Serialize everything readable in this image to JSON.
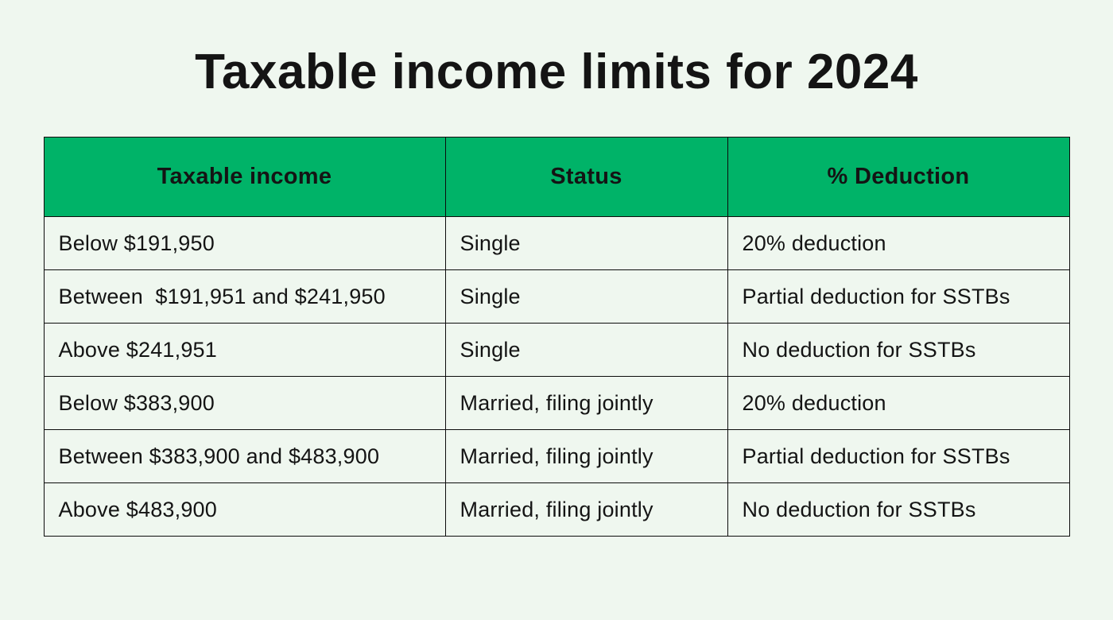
{
  "page": {
    "title": "Taxable income limits for 2024"
  },
  "colors": {
    "background": "#eff7ef",
    "header_green": "#00b368",
    "border": "#0c0c0c",
    "text": "#141414"
  },
  "table": {
    "headers": [
      "Taxable income",
      "Status",
      "% Deduction"
    ],
    "rows": [
      [
        "Below $191,950",
        "Single",
        "20% deduction"
      ],
      [
        "Between  $191,951 and $241,950",
        "Single",
        "Partial deduction for SSTBs"
      ],
      [
        "Above $241,951",
        "Single",
        "No deduction for SSTBs"
      ],
      [
        "Below $383,900",
        "Married, filing jointly",
        "20% deduction"
      ],
      [
        "Between $383,900 and $483,900",
        "Married, filing jointly",
        "Partial deduction for SSTBs"
      ],
      [
        "Above $483,900",
        "Married, filing jointly",
        "No deduction for SSTBs"
      ]
    ]
  },
  "chart_data": {
    "type": "table",
    "title": "Taxable income limits for 2024",
    "columns": [
      "Taxable income",
      "Status",
      "% Deduction"
    ],
    "rows": [
      {
        "taxable_income": "Below $191,950",
        "status": "Single",
        "deduction": "20% deduction"
      },
      {
        "taxable_income": "Between  $191,951 and $241,950",
        "status": "Single",
        "deduction": "Partial deduction for SSTBs"
      },
      {
        "taxable_income": "Above $241,951",
        "status": "Single",
        "deduction": "No deduction for SSTBs"
      },
      {
        "taxable_income": "Below $383,900",
        "status": "Married, filing jointly",
        "deduction": "20% deduction"
      },
      {
        "taxable_income": "Between $383,900 and $483,900",
        "status": "Married, filing jointly",
        "deduction": "Partial deduction for SSTBs"
      },
      {
        "taxable_income": "Above $483,900",
        "status": "Married, filing jointly",
        "deduction": "No deduction for SSTBs"
      }
    ],
    "layout": {
      "header_background": "#00b368",
      "body_background": "#eff7ef",
      "border_color": "#0c0c0c",
      "header_alignment": "center",
      "cell_alignment": "left"
    }
  }
}
